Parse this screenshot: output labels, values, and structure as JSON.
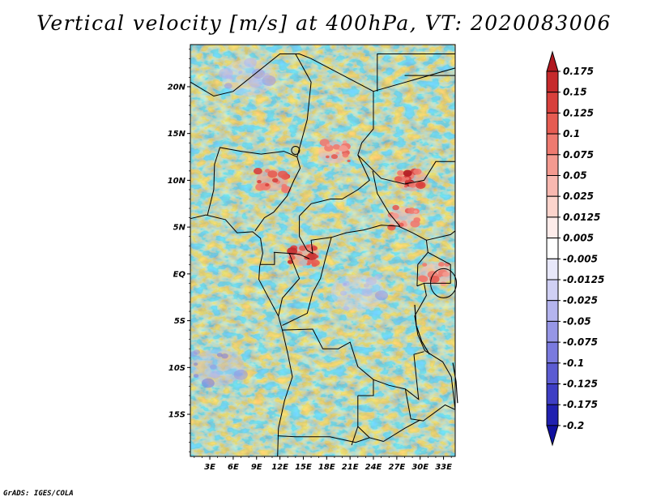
{
  "chart_data": {
    "type": "heatmap",
    "title": "Vertical velocity [m/s] at 400hPa, VT: 2020083006",
    "variable": "Vertical velocity",
    "units": "m/s",
    "level": "400hPa",
    "valid_time": "2020083006",
    "x_axis": {
      "ticks": [
        "3E",
        "6E",
        "9E",
        "12E",
        "15E",
        "18E",
        "21E",
        "24E",
        "27E",
        "30E",
        "33E"
      ],
      "tick_values": [
        3,
        6,
        9,
        12,
        15,
        18,
        21,
        24,
        27,
        30,
        33
      ],
      "range": [
        0.5,
        34.5
      ]
    },
    "y_axis": {
      "ticks": [
        "20N",
        "15N",
        "10N",
        "5N",
        "EQ",
        "5S",
        "10S",
        "15S"
      ],
      "tick_values": [
        20,
        15,
        10,
        5,
        0,
        -5,
        -10,
        -15
      ],
      "range": [
        -19.5,
        24.5
      ]
    },
    "colorbar": {
      "labels": [
        "0.175",
        "0.15",
        "0.125",
        "0.1",
        "0.075",
        "0.05",
        "0.025",
        "0.0125",
        "0.005",
        "-0.005",
        "-0.0125",
        "-0.025",
        "-0.05",
        "-0.075",
        "-0.1",
        "-0.125",
        "-0.175",
        "-0.2"
      ],
      "colors": [
        "#b01820",
        "#c62a2c",
        "#d8403c",
        "#e65c52",
        "#ee7a70",
        "#f49a90",
        "#f8b8b0",
        "#fcd4cc",
        "#fdecea",
        "#ffffff",
        "#e8e8fa",
        "#d0d0f4",
        "#b4b4ee",
        "#9696e6",
        "#7a7ade",
        "#5c5cd2",
        "#3e3ec4",
        "#2020b0",
        "#1010a0"
      ],
      "extend": "both"
    },
    "features": [
      {
        "name": "updraft-cluster",
        "lon": 11,
        "lat": 10,
        "value": 0.15
      },
      {
        "name": "updraft-cluster",
        "lon": 29,
        "lat": 10,
        "value": 0.15
      },
      {
        "name": "updraft-cluster",
        "lon": 19,
        "lat": 13,
        "value": 0.1
      },
      {
        "name": "updraft-cluster",
        "lon": 28,
        "lat": 6,
        "value": 0.1
      },
      {
        "name": "updraft-cluster",
        "lon": 32,
        "lat": 0,
        "value": 0.1
      },
      {
        "name": "updraft-cluster",
        "lon": 15,
        "lat": 2,
        "value": 0.15
      },
      {
        "name": "downdraft-region",
        "lon": 22,
        "lat": -2,
        "value": -0.05
      },
      {
        "name": "downdraft-region",
        "lon": 8,
        "lat": 21,
        "value": -0.05
      },
      {
        "name": "downdraft-region",
        "lon": 4,
        "lat": -10,
        "value": -0.075
      }
    ]
  },
  "footer": {
    "credit": "GrADS: IGES/COLA"
  }
}
